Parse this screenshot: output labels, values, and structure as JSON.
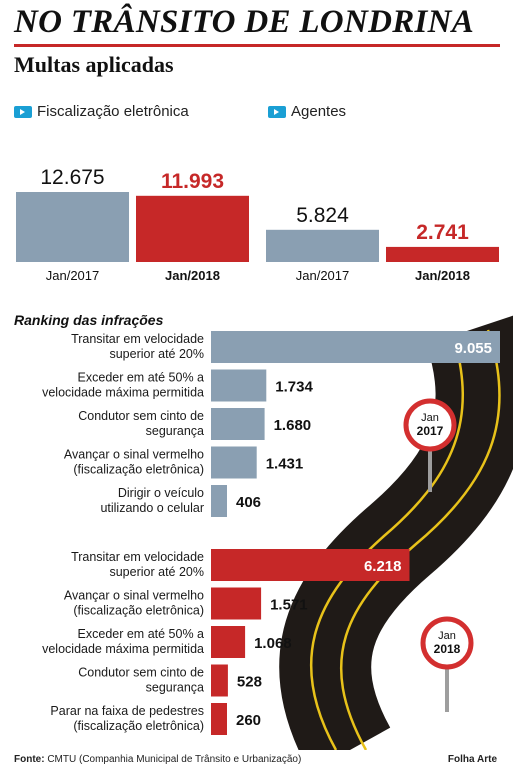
{
  "header": {
    "title": "NO TRÂNSITO DE LONDRINA",
    "subtitle": "Multas aplicadas"
  },
  "legend": [
    {
      "label": "Fiscalização eletrônica",
      "icon": "arrow-badge-icon"
    },
    {
      "label": "Agentes",
      "icon": "arrow-badge-icon"
    }
  ],
  "colors": {
    "y2017": "#8a9fb2",
    "y2018": "#c62828",
    "accent": "#1a9fd4",
    "road": "#1f1a17",
    "road_line": "#e8c21a"
  },
  "chart_data": [
    {
      "type": "bar",
      "title": "Multas aplicadas",
      "groups": [
        {
          "name": "Fiscalização eletrônica",
          "categories": [
            "Jan/2017",
            "Jan/2018"
          ],
          "values": [
            12675,
            11993
          ],
          "value_labels": [
            "12.675",
            "11.993"
          ]
        },
        {
          "name": "Agentes",
          "categories": [
            "Jan/2017",
            "Jan/2018"
          ],
          "values": [
            5824,
            2741
          ],
          "value_labels": [
            "5.824",
            "2.741"
          ]
        }
      ]
    },
    {
      "type": "bar",
      "orientation": "horizontal",
      "title": "Ranking das infrações",
      "series": [
        {
          "name": "Jan 2017",
          "badge_lines": [
            "Jan",
            "2017"
          ],
          "items": [
            {
              "label_lines": [
                "Transitar em velocidade",
                "superior até 20%"
              ],
              "value": 9055,
              "value_label": "9.055"
            },
            {
              "label_lines": [
                "Exceder em até 50% a",
                "velocidade máxima permitida"
              ],
              "value": 1734,
              "value_label": "1.734"
            },
            {
              "label_lines": [
                "Condutor sem cinto de",
                "segurança"
              ],
              "value": 1680,
              "value_label": "1.680"
            },
            {
              "label_lines": [
                "Avançar o sinal vermelho",
                "(fiscalização eletrônica)"
              ],
              "value": 1431,
              "value_label": "1.431"
            },
            {
              "label_lines": [
                "Dirigir o veículo",
                "utilizando o celular"
              ],
              "value": 406,
              "value_label": "406"
            }
          ]
        },
        {
          "name": "Jan 2018",
          "badge_lines": [
            "Jan",
            "2018"
          ],
          "items": [
            {
              "label_lines": [
                "Transitar em velocidade",
                "superior até 20%"
              ],
              "value": 6218,
              "value_label": "6.218"
            },
            {
              "label_lines": [
                "Avançar o sinal vermelho",
                "(fiscalização eletrônica)"
              ],
              "value": 1571,
              "value_label": "1.571"
            },
            {
              "label_lines": [
                "Exceder em até 50% a",
                "velocidade máxima permitida"
              ],
              "value": 1068,
              "value_label": "1.068"
            },
            {
              "label_lines": [
                "Condutor sem cinto de",
                "segurança"
              ],
              "value": 528,
              "value_label": "528"
            },
            {
              "label_lines": [
                "Parar na faixa de pedestres",
                "(fiscalização eletrônica)"
              ],
              "value": 260,
              "value_label": "260"
            }
          ]
        }
      ]
    }
  ],
  "footer": {
    "source_label": "Fonte:",
    "source_text": " CMTU (Companhia Municipal de Trânsito e Urbanização)",
    "credit": "Folha Arte"
  }
}
